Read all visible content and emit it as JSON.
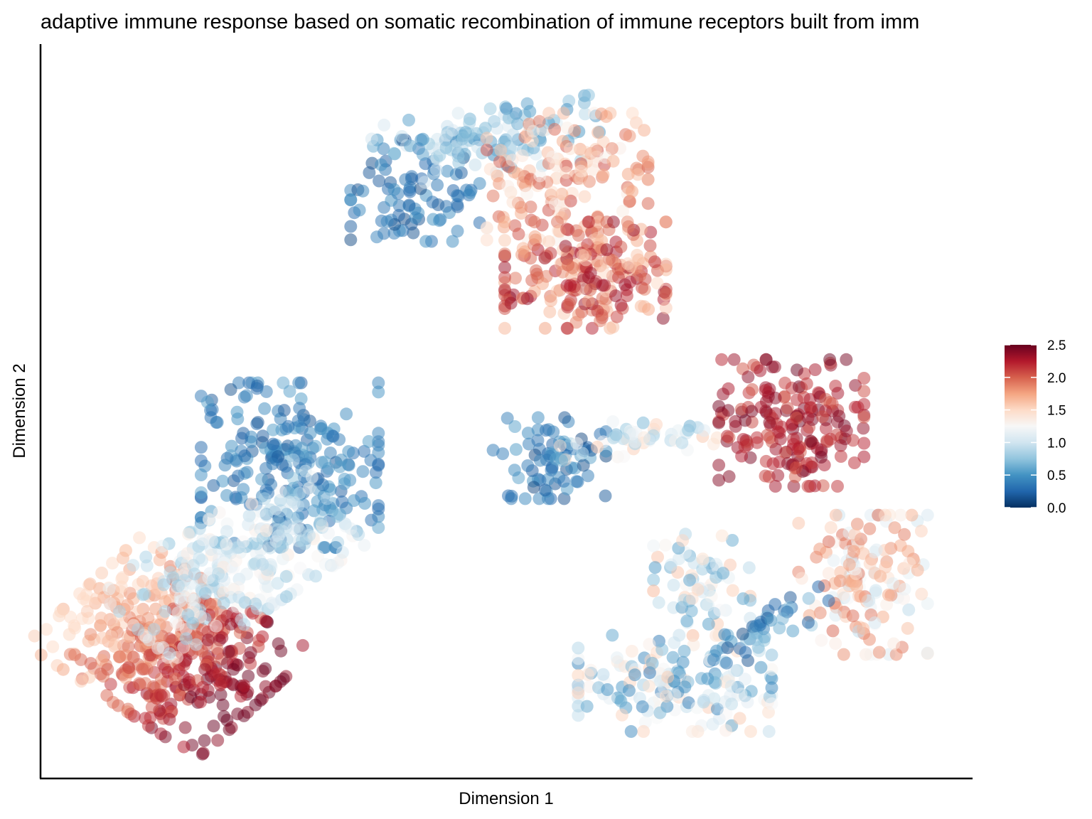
{
  "chart_data": {
    "type": "scatter",
    "title": "adaptive immune response based on somatic recombination of immune receptors built from imm",
    "xlabel": "Dimension 1",
    "ylabel": "Dimension 2",
    "xlim": [
      0,
      100
    ],
    "ylim": [
      0,
      100
    ],
    "x_ticks_shown": false,
    "y_ticks_shown": false,
    "grid": false,
    "legend": {
      "position": "right",
      "type": "colorbar",
      "min": 0.0,
      "max": 2.5,
      "ticks": [
        "0.0",
        "0.5",
        "1.0",
        "1.5",
        "2.0",
        "2.5"
      ],
      "colors": [
        "#053061",
        "#2166ac",
        "#4393c3",
        "#92c5de",
        "#d1e5f0",
        "#f7f7f7",
        "#fddbc7",
        "#f4a582",
        "#d6604d",
        "#b2182b",
        "#67001f"
      ]
    },
    "point_alpha": 0.5,
    "clusters": [
      {
        "cx": 12.5,
        "cy": 17,
        "sx": 5.5,
        "sy": 7,
        "angle": 50,
        "n": 420,
        "value_grad": [
          1.5,
          2.5
        ],
        "grad_dir": -1
      },
      {
        "cx": 26,
        "cy": 43,
        "sx": 5.5,
        "sy": 6.5,
        "angle": 0,
        "n": 230,
        "value_grad": [
          0.15,
          0.6
        ],
        "grad_dir": 0
      },
      {
        "cx": 20,
        "cy": 29,
        "sx": 8,
        "sy": 4,
        "angle": 40,
        "n": 260,
        "value_grad": [
          0.7,
          1.4
        ],
        "grad_dir": 0
      },
      {
        "cx": 40,
        "cy": 82,
        "sx": 4,
        "sy": 4,
        "angle": 0,
        "n": 90,
        "value_grad": [
          0.1,
          0.5
        ],
        "grad_dir": 0
      },
      {
        "cx": 48,
        "cy": 89,
        "sx": 7,
        "sy": 2.5,
        "angle": 10,
        "n": 110,
        "value_grad": [
          0.4,
          1.1
        ],
        "grad_dir": 0
      },
      {
        "cx": 57,
        "cy": 84,
        "sx": 5,
        "sy": 5,
        "angle": 0,
        "n": 150,
        "value_grad": [
          1.3,
          2.1
        ],
        "grad_dir": 0
      },
      {
        "cx": 59,
        "cy": 70,
        "sx": 5,
        "sy": 4.2,
        "angle": 0,
        "n": 220,
        "value_grad": [
          1.5,
          2.4
        ],
        "grad_dir": 0
      },
      {
        "cx": 55,
        "cy": 44,
        "sx": 3.5,
        "sy": 3.2,
        "angle": 0,
        "n": 80,
        "value_grad": [
          0.1,
          0.6
        ],
        "grad_dir": 0
      },
      {
        "cx": 66,
        "cy": 47,
        "sx": 5.5,
        "sy": 1.4,
        "angle": 5,
        "n": 50,
        "value_grad": [
          0.6,
          1.6
        ],
        "grad_dir": 0
      },
      {
        "cx": 82,
        "cy": 49,
        "sx": 4.5,
        "sy": 5,
        "angle": 0,
        "n": 190,
        "value_grad": [
          2.0,
          2.5
        ],
        "grad_dir": 0
      },
      {
        "cx": 90,
        "cy": 26,
        "sx": 4,
        "sy": 5.5,
        "angle": 0,
        "n": 150,
        "value_grad": [
          0.9,
          2.0
        ],
        "grad_dir": 0
      },
      {
        "cx": 72,
        "cy": 26,
        "sx": 3,
        "sy": 4,
        "angle": 0,
        "n": 70,
        "value_grad": [
          0.5,
          1.7
        ],
        "grad_dir": 0
      },
      {
        "cx": 69,
        "cy": 12,
        "sx": 6,
        "sy": 3.8,
        "angle": 0,
        "n": 170,
        "value_grad": [
          0.3,
          1.6
        ],
        "grad_dir": 0
      },
      {
        "cx": 80,
        "cy": 20,
        "sx": 4,
        "sy": 1.5,
        "angle": 30,
        "n": 40,
        "value_grad": [
          0.1,
          0.8
        ],
        "grad_dir": 0
      }
    ]
  }
}
